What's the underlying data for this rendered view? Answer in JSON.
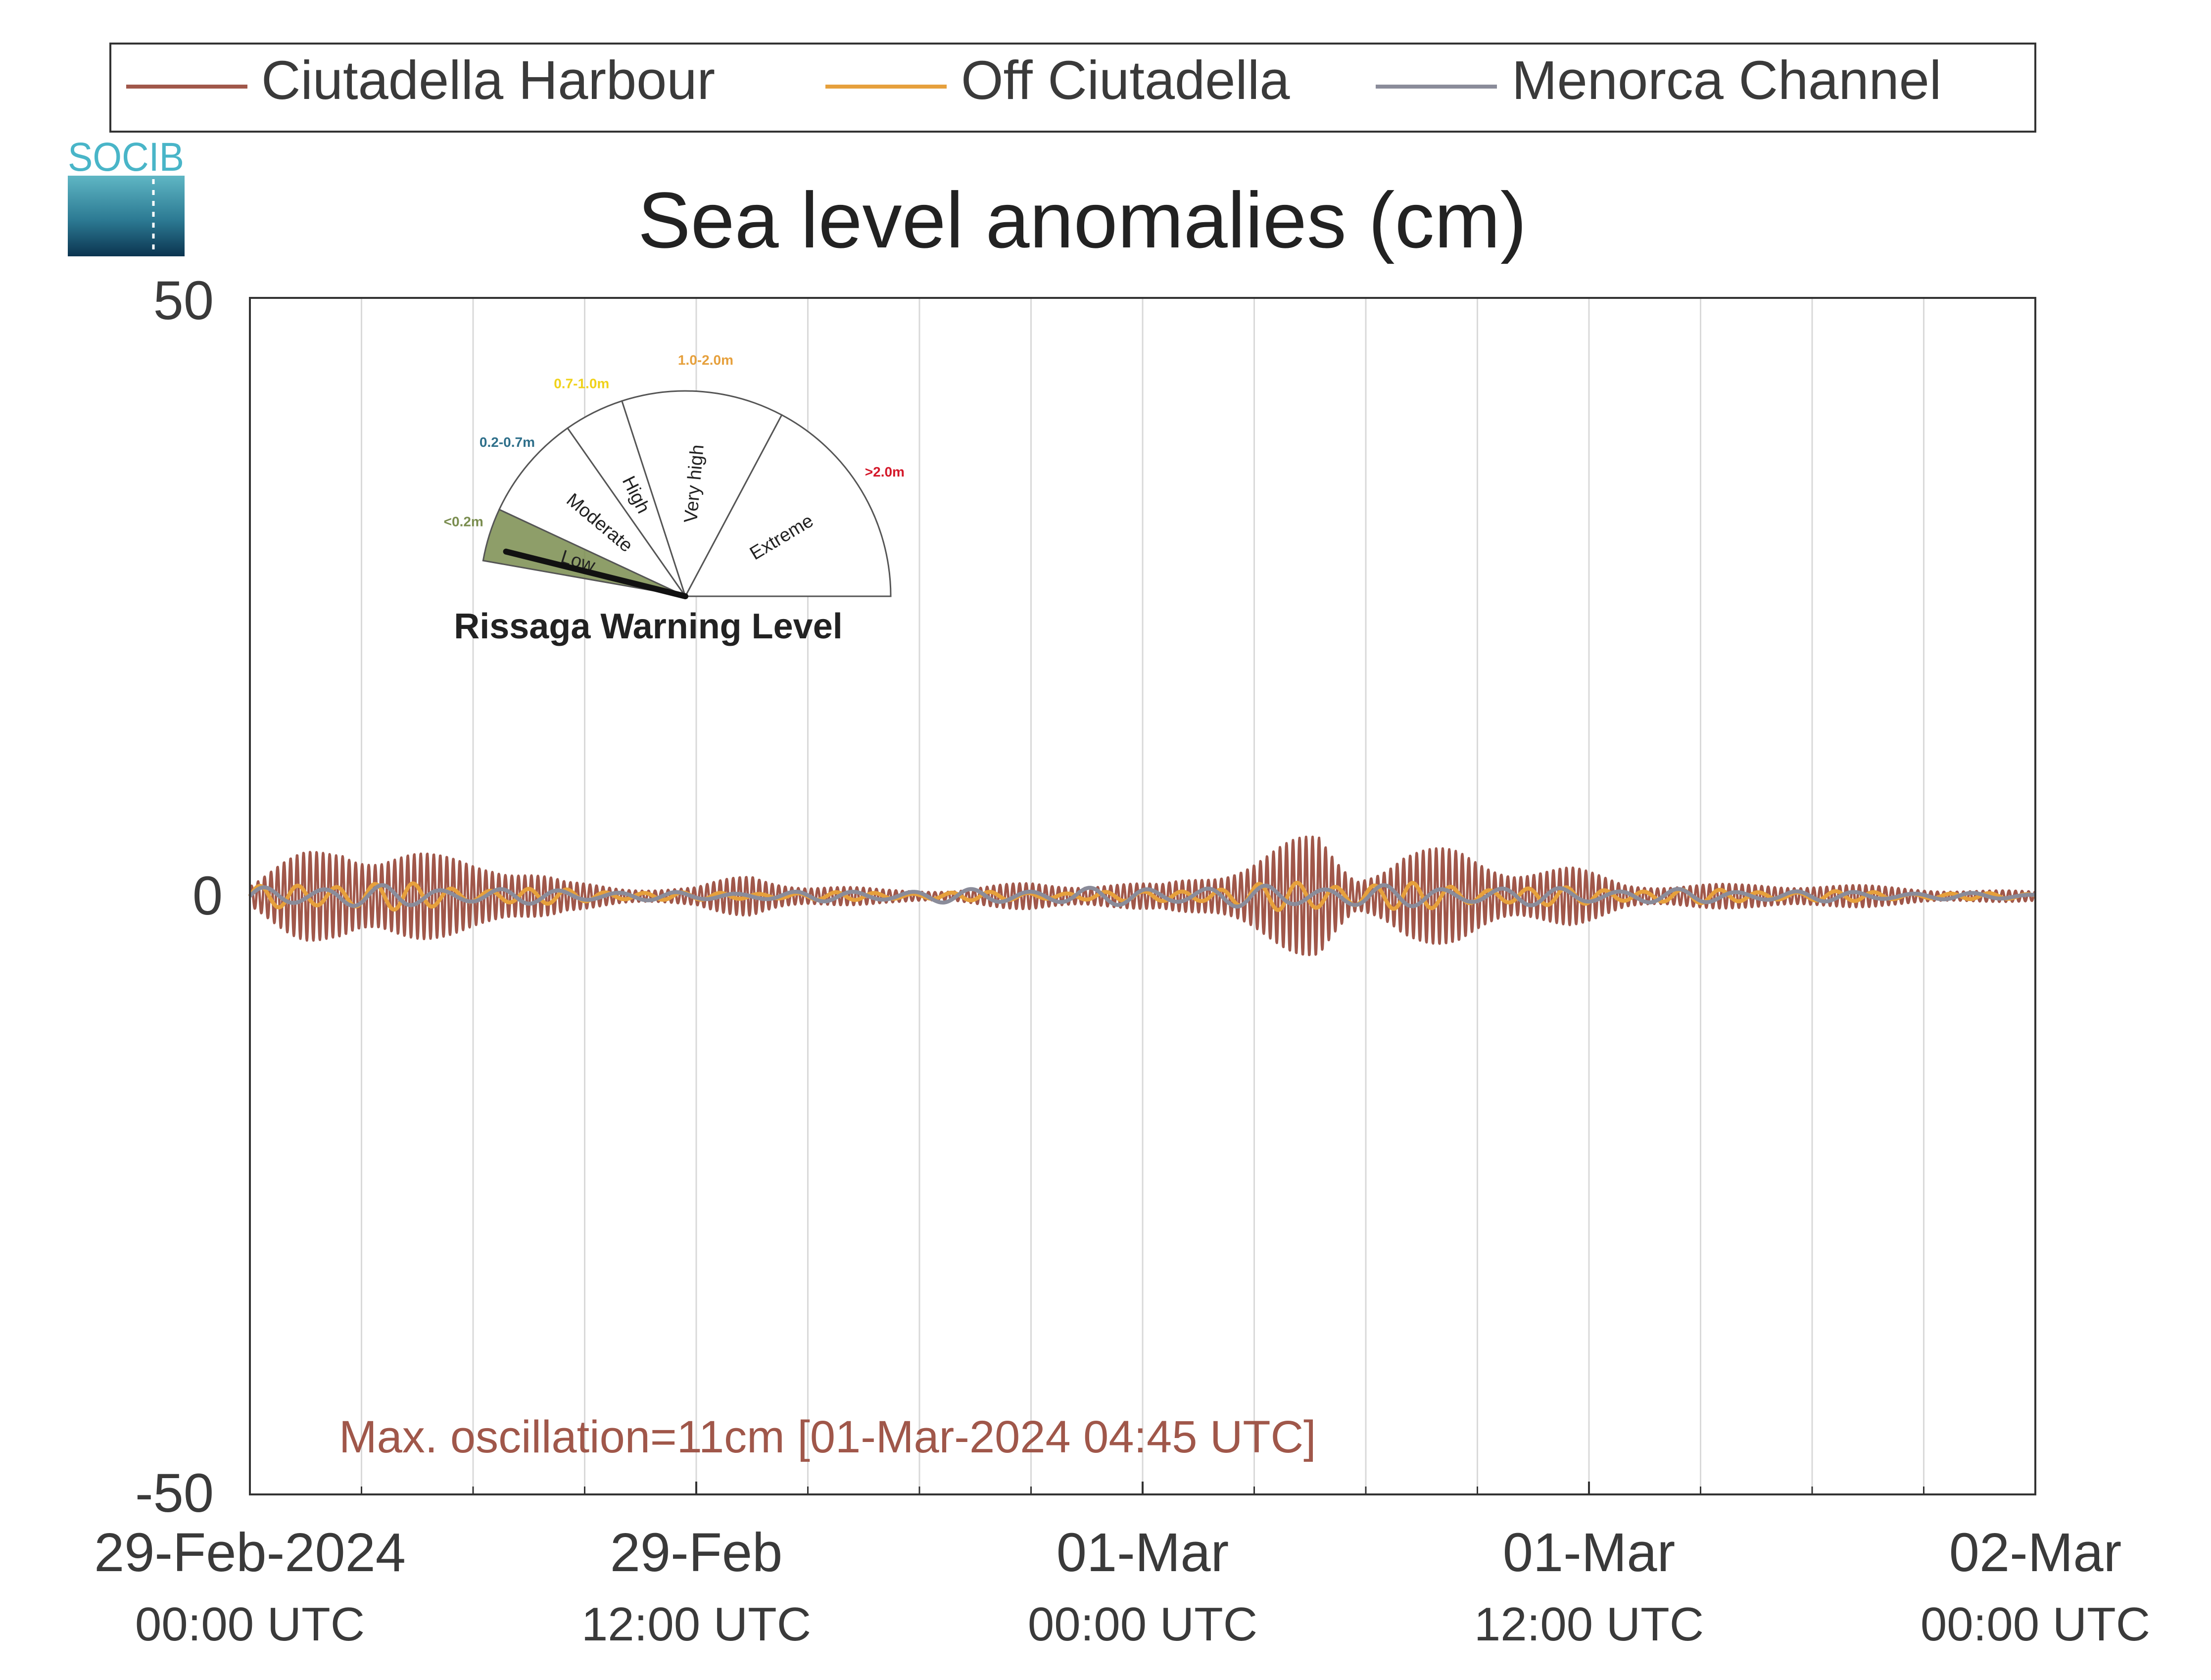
{
  "chart_data": {
    "type": "line",
    "title": "Sea level anomalies (cm)",
    "ylim": [
      -50,
      50
    ],
    "yticks": [
      50,
      0,
      -50
    ],
    "x_range": [
      "2024-02-29 00:00",
      "2024-03-02 00:00"
    ],
    "grid": "vertical lines every 3 hours",
    "legend_position": "top",
    "xticks": [
      {
        "date": "2024-02-29 00:00",
        "line1": "29-Feb-2024",
        "line2": "00:00 UTC"
      },
      {
        "date": "2024-02-29 12:00",
        "line1": "29-Feb",
        "line2": "12:00 UTC"
      },
      {
        "date": "2024-03-01 00:00",
        "line1": "01-Mar",
        "line2": "00:00 UTC"
      },
      {
        "date": "2024-03-01 12:00",
        "line1": "01-Mar",
        "line2": "12:00 UTC"
      },
      {
        "date": "2024-03-02 00:00",
        "line1": "02-Mar",
        "line2": "00:00 UTC"
      }
    ],
    "series": [
      {
        "name": "Ciutadella Harbour",
        "color": "#a0574a",
        "envelope": [
          {
            "date": "2024-02-29 00:00",
            "amp": 1.0
          },
          {
            "date": "2024-02-29 01:30",
            "amp": 4.0
          },
          {
            "date": "2024-02-29 02:30",
            "amp": 5.5
          },
          {
            "date": "2024-02-29 03:30",
            "amp": 4.0
          },
          {
            "date": "2024-02-29 05:00",
            "amp": 3.5
          },
          {
            "date": "2024-02-29 06:30",
            "amp": 3.5
          },
          {
            "date": "2024-02-29 07:30",
            "amp": 2.5
          },
          {
            "date": "2024-02-29 08:30",
            "amp": 1.2
          },
          {
            "date": "2024-02-29 10:00",
            "amp": 0.8
          },
          {
            "date": "2024-02-29 12:00",
            "amp": 0.8
          },
          {
            "date": "2024-02-29 13:30",
            "amp": 2.0
          },
          {
            "date": "2024-02-29 15:00",
            "amp": 1.0
          },
          {
            "date": "2024-02-29 17:00",
            "amp": 0.6
          },
          {
            "date": "2024-02-29 19:00",
            "amp": 0.6
          },
          {
            "date": "2024-02-29 21:00",
            "amp": 1.2
          },
          {
            "date": "2024-02-29 23:00",
            "amp": 1.2
          },
          {
            "date": "2024-03-01 00:30",
            "amp": 1.0
          },
          {
            "date": "2024-03-01 02:00",
            "amp": 2.5
          },
          {
            "date": "2024-03-01 03:00",
            "amp": 3.5
          },
          {
            "date": "2024-03-01 04:45",
            "amp": 5.5
          },
          {
            "date": "2024-03-01 05:45",
            "amp": 2.0
          },
          {
            "date": "2024-03-01 07:00",
            "amp": 4.0
          },
          {
            "date": "2024-03-01 08:30",
            "amp": 4.0
          },
          {
            "date": "2024-03-01 10:00",
            "amp": 2.8
          },
          {
            "date": "2024-03-01 11:30",
            "amp": 2.5
          },
          {
            "date": "2024-03-01 13:00",
            "amp": 1.2
          },
          {
            "date": "2024-03-01 16:00",
            "amp": 1.0
          },
          {
            "date": "2024-03-01 18:00",
            "amp": 1.2
          },
          {
            "date": "2024-03-01 20:00",
            "amp": 0.8
          },
          {
            "date": "2024-03-01 22:00",
            "amp": 0.6
          },
          {
            "date": "2024-03-02 00:00",
            "amp": 0.4
          }
        ]
      },
      {
        "name": "Off Ciutadella",
        "color": "#e6a03c",
        "envelope": [
          {
            "date": "2024-02-29 00:00",
            "amp": 0.8
          },
          {
            "date": "2024-02-29 02:30",
            "amp": 1.4
          },
          {
            "date": "2024-02-29 06:00",
            "amp": 0.8
          },
          {
            "date": "2024-02-29 12:00",
            "amp": 0.3
          },
          {
            "date": "2024-03-01 00:00",
            "amp": 0.4
          },
          {
            "date": "2024-03-01 04:45",
            "amp": 1.4
          },
          {
            "date": "2024-03-01 10:00",
            "amp": 0.8
          },
          {
            "date": "2024-03-02 00:00",
            "amp": 0.2
          }
        ]
      },
      {
        "name": "Menorca Channel",
        "color": "#8a8c9a",
        "envelope": [
          {
            "date": "2024-02-29 00:00",
            "amp": 0.8
          },
          {
            "date": "2024-02-29 02:30",
            "amp": 1.0
          },
          {
            "date": "2024-02-29 12:00",
            "amp": 0.3
          },
          {
            "date": "2024-03-01 05:00",
            "amp": 1.0
          },
          {
            "date": "2024-03-02 00:00",
            "amp": 0.2
          }
        ]
      }
    ],
    "annotation": "Max. oscillation=11cm [01-Mar-2024 04:45 UTC]",
    "annotation_color": "#a0574a"
  },
  "logo": {
    "text": "SOCIB"
  },
  "gauge": {
    "title": "Rissaga Warning Level",
    "level": "Low",
    "segments": [
      {
        "label": "Low",
        "range": "<0.2m",
        "color": "#7a8d4f",
        "active": true
      },
      {
        "label": "Moderate",
        "range": "0.2-0.7m",
        "color": "#2e6f8a",
        "active": false
      },
      {
        "label": "High",
        "range": "0.7-1.0m",
        "color": "#f0d21a",
        "active": false
      },
      {
        "label": "Very high",
        "range": "1.0-2.0m",
        "color": "#e6a03c",
        "active": false
      },
      {
        "label": "Extreme",
        "range": ">2.0m",
        "color": "#d4182a",
        "active": false
      }
    ]
  }
}
